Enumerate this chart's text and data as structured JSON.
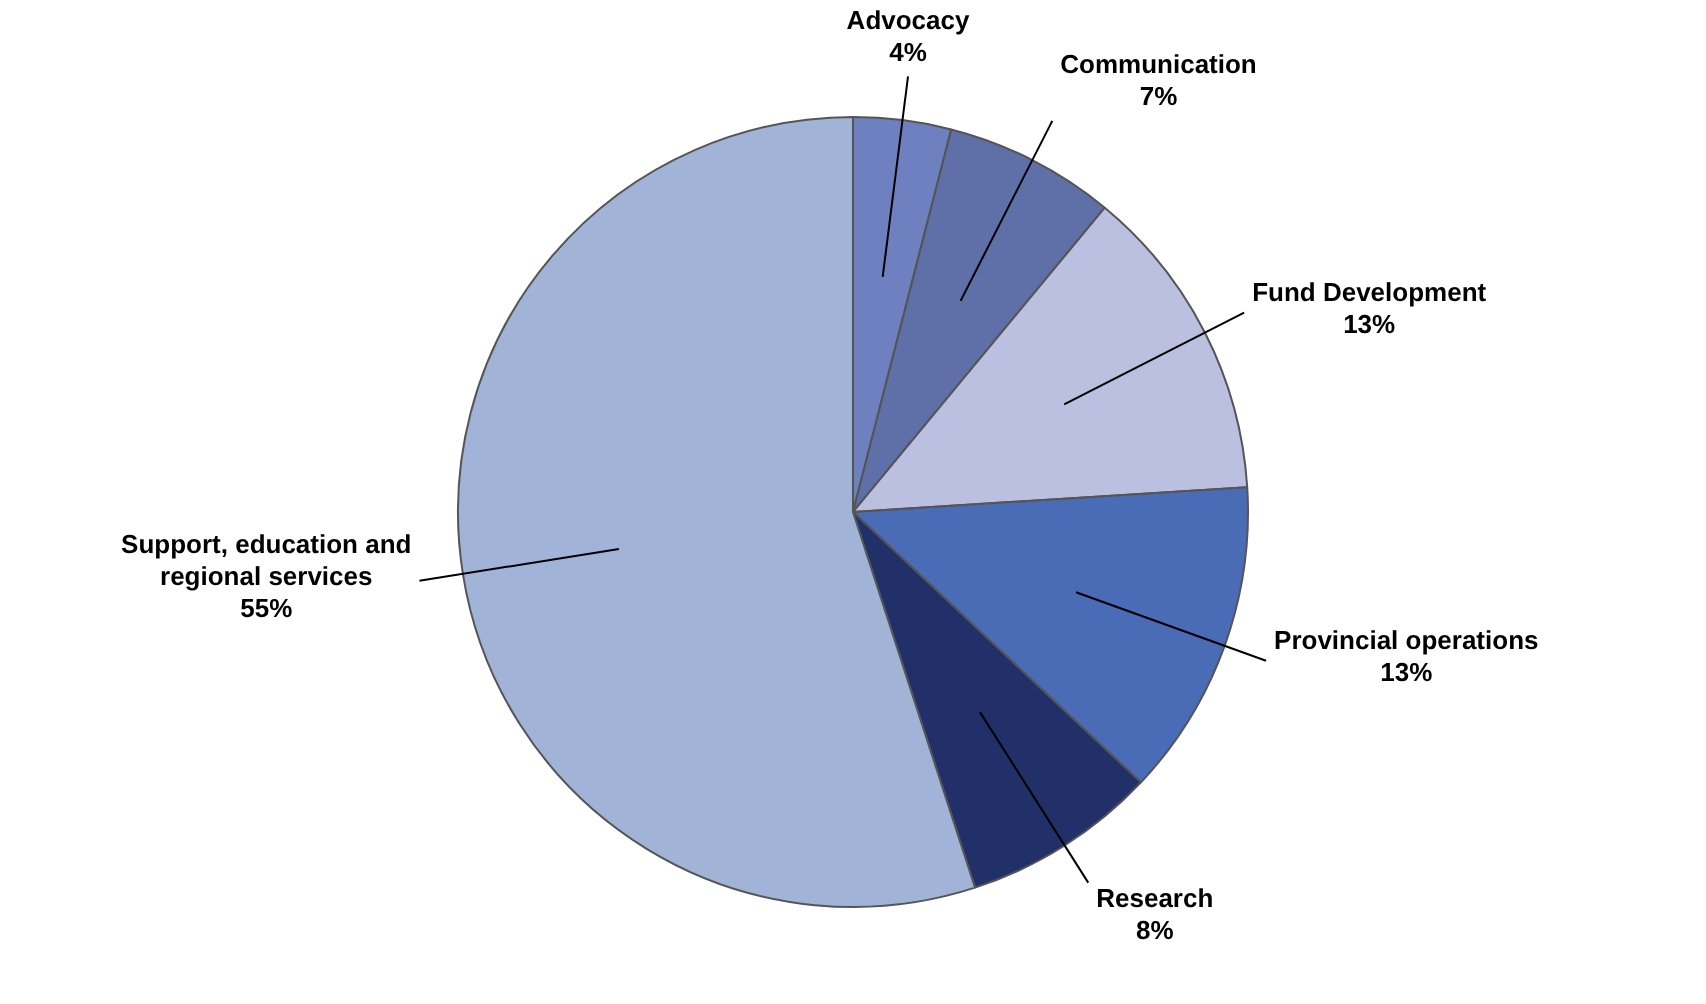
{
  "chart_data": {
    "type": "pie",
    "categories": [
      "Advocacy",
      "Communication",
      "Fund Development",
      "Provincial operations",
      "Research",
      "Support, education and regional services"
    ],
    "values": [
      4,
      7,
      13,
      13,
      8,
      55
    ],
    "value_labels": [
      "4%",
      "7%",
      "13%",
      "13%",
      "8%",
      "55%"
    ],
    "colors": [
      "#6f80c0",
      "#5f6fa8",
      "#bcc0e0",
      "#4a6bb5",
      "#22306a",
      "#a2b3d8"
    ],
    "legend": false
  }
}
